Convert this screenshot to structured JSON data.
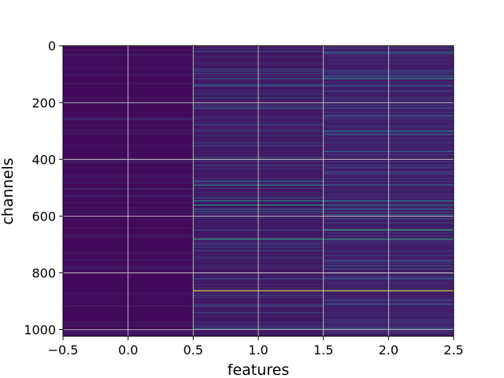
{
  "chart_data": {
    "type": "heatmap",
    "title": "",
    "xlabel": "features",
    "ylabel": "channels",
    "xlim": [
      -0.5,
      2.5
    ],
    "ylim": [
      1023.5,
      -0.5
    ],
    "y_inverted": true,
    "grid": true,
    "colormap": "viridis",
    "n_rows": 1024,
    "columns": [
      0,
      1,
      2
    ],
    "x_ticks": [
      -0.5,
      0.0,
      0.5,
      1.0,
      1.5,
      2.0,
      2.5
    ],
    "x_tick_labels": [
      "−0.5",
      "0.0",
      "0.5",
      "1.0",
      "1.5",
      "2.0",
      "2.5"
    ],
    "y_ticks": [
      0,
      200,
      400,
      600,
      800,
      1000
    ],
    "y_tick_labels": [
      "0",
      "200",
      "400",
      "600",
      "800",
      "1000"
    ],
    "value_range": [
      0,
      1
    ],
    "base_level": [
      0.03,
      0.07,
      0.09
    ],
    "highlights": [
      {
        "row": 862,
        "values": [
          0.02,
          0.92,
          0.9
        ]
      },
      {
        "row": 648,
        "values": [
          0.02,
          0.3,
          0.6
        ]
      },
      {
        "row": 680,
        "values": [
          0.02,
          0.55,
          0.55
        ]
      },
      {
        "row": 560,
        "values": [
          0.02,
          0.52,
          0.52
        ]
      },
      {
        "row": 545,
        "values": [
          0.02,
          0.42,
          0.45
        ]
      },
      {
        "row": 490,
        "values": [
          0.02,
          0.45,
          0.35
        ]
      },
      {
        "row": 115,
        "values": [
          0.02,
          0.38,
          0.42
        ]
      },
      {
        "row": 140,
        "values": [
          0.02,
          0.3,
          0.35
        ]
      },
      {
        "row": 218,
        "values": [
          0.02,
          0.32,
          0.3
        ]
      },
      {
        "row": 25,
        "values": [
          0.02,
          0.05,
          0.38
        ]
      },
      {
        "row": 995,
        "values": [
          0.02,
          0.3,
          0.35
        ]
      },
      {
        "row": 575,
        "values": [
          0.02,
          0.3,
          0.3
        ]
      },
      {
        "row": 910,
        "values": [
          0.02,
          0.28,
          0.3
        ]
      },
      {
        "row": 820,
        "values": [
          0.02,
          0.25,
          0.28
        ]
      },
      {
        "row": 300,
        "values": [
          0.02,
          0.2,
          0.25
        ]
      },
      {
        "row": 420,
        "values": [
          0.02,
          0.22,
          0.2
        ]
      }
    ],
    "colors": {
      "grid": "#d9d9d9",
      "background": "#ffffff",
      "axis": "#000000"
    }
  }
}
